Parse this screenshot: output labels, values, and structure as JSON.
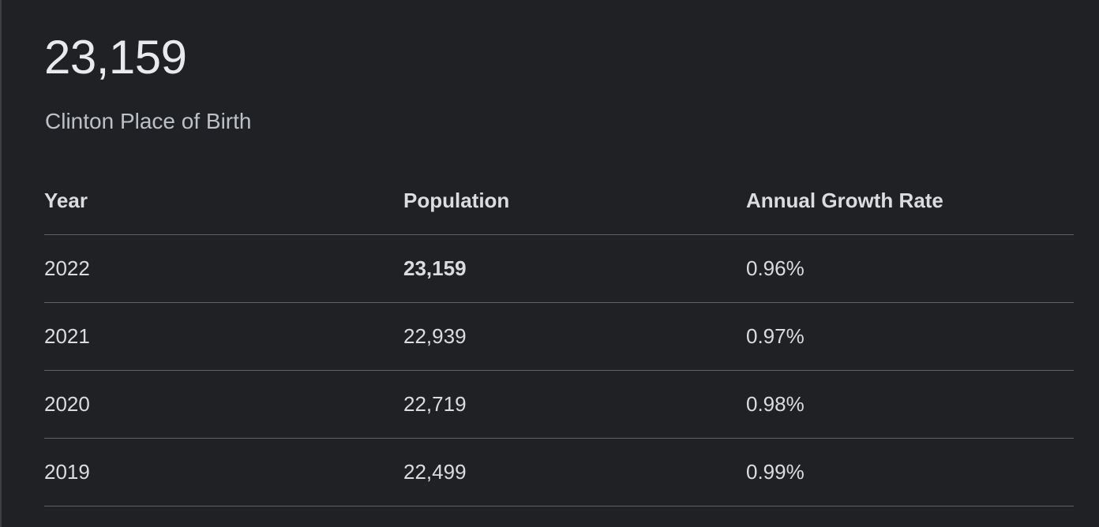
{
  "summary": {
    "value": "23,159",
    "label": "Clinton Place of Birth"
  },
  "table": {
    "headers": [
      "Year",
      "Population",
      "Annual Growth Rate"
    ],
    "rows": [
      {
        "year": "2022",
        "population": "23,159",
        "growth": "0.96%"
      },
      {
        "year": "2021",
        "population": "22,939",
        "growth": "0.97%"
      },
      {
        "year": "2020",
        "population": "22,719",
        "growth": "0.98%"
      },
      {
        "year": "2019",
        "population": "22,499",
        "growth": "0.99%"
      }
    ]
  }
}
